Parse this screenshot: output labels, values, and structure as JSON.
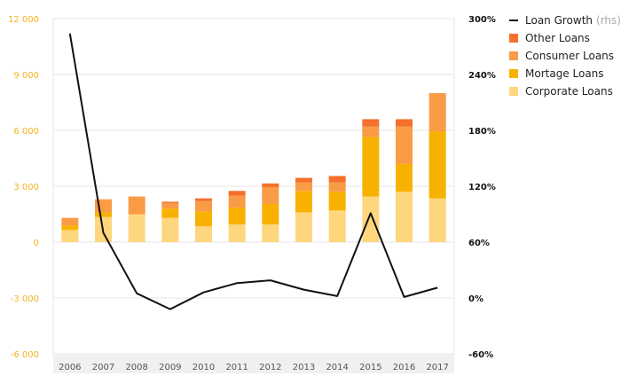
{
  "chart_data": {
    "type": "bar",
    "stacked": true,
    "categories": [
      "2006",
      "2007",
      "2008",
      "2009",
      "2010",
      "2011",
      "2012",
      "2013",
      "2014",
      "2015",
      "2016",
      "2017"
    ],
    "series": [
      {
        "name": "Corporate Loans",
        "color": "#fdd67d",
        "values": [
          650,
          1350,
          1500,
          1300,
          850,
          950,
          950,
          1600,
          1700,
          2450,
          2700,
          2350
        ]
      },
      {
        "name": "Mortage Loans",
        "color": "#f9b100",
        "values": [
          250,
          250,
          0,
          500,
          800,
          900,
          1100,
          1150,
          1000,
          3200,
          1500,
          3600
        ]
      },
      {
        "name": "Consumer Loans",
        "color": "#fa9b46",
        "values": [
          400,
          700,
          950,
          300,
          550,
          650,
          900,
          450,
          500,
          550,
          2000,
          2050
        ]
      },
      {
        "name": "Other Loans",
        "color": "#f5702c",
        "values": [
          0,
          0,
          0,
          70,
          150,
          250,
          200,
          250,
          350,
          400,
          400,
          0
        ]
      }
    ],
    "line_series": {
      "name": "Loan Growth",
      "legend_note": "(rhs)",
      "color": "#111111",
      "axis": "right",
      "values": [
        284,
        70,
        5,
        -12,
        6,
        16,
        19,
        9,
        2,
        91,
        1,
        11
      ]
    },
    "y_left": {
      "ticks": [
        "12 000",
        "9 000",
        "6 000",
        "3 000",
        "0",
        "-3 000",
        "-6 000"
      ],
      "tick_values": [
        12000,
        9000,
        6000,
        3000,
        0,
        -3000,
        -6000
      ],
      "ylim": [
        -6000,
        12000
      ],
      "tick_color": "#f5b120"
    },
    "y_right": {
      "ticks": [
        "300%",
        "240%",
        "180%",
        "120%",
        "60%",
        "0%",
        "-60%"
      ],
      "tick_values": [
        300,
        240,
        180,
        120,
        60,
        0,
        -60
      ],
      "ylim": [
        -60,
        300
      ]
    },
    "grid": true,
    "legend_placement": "top-right"
  }
}
